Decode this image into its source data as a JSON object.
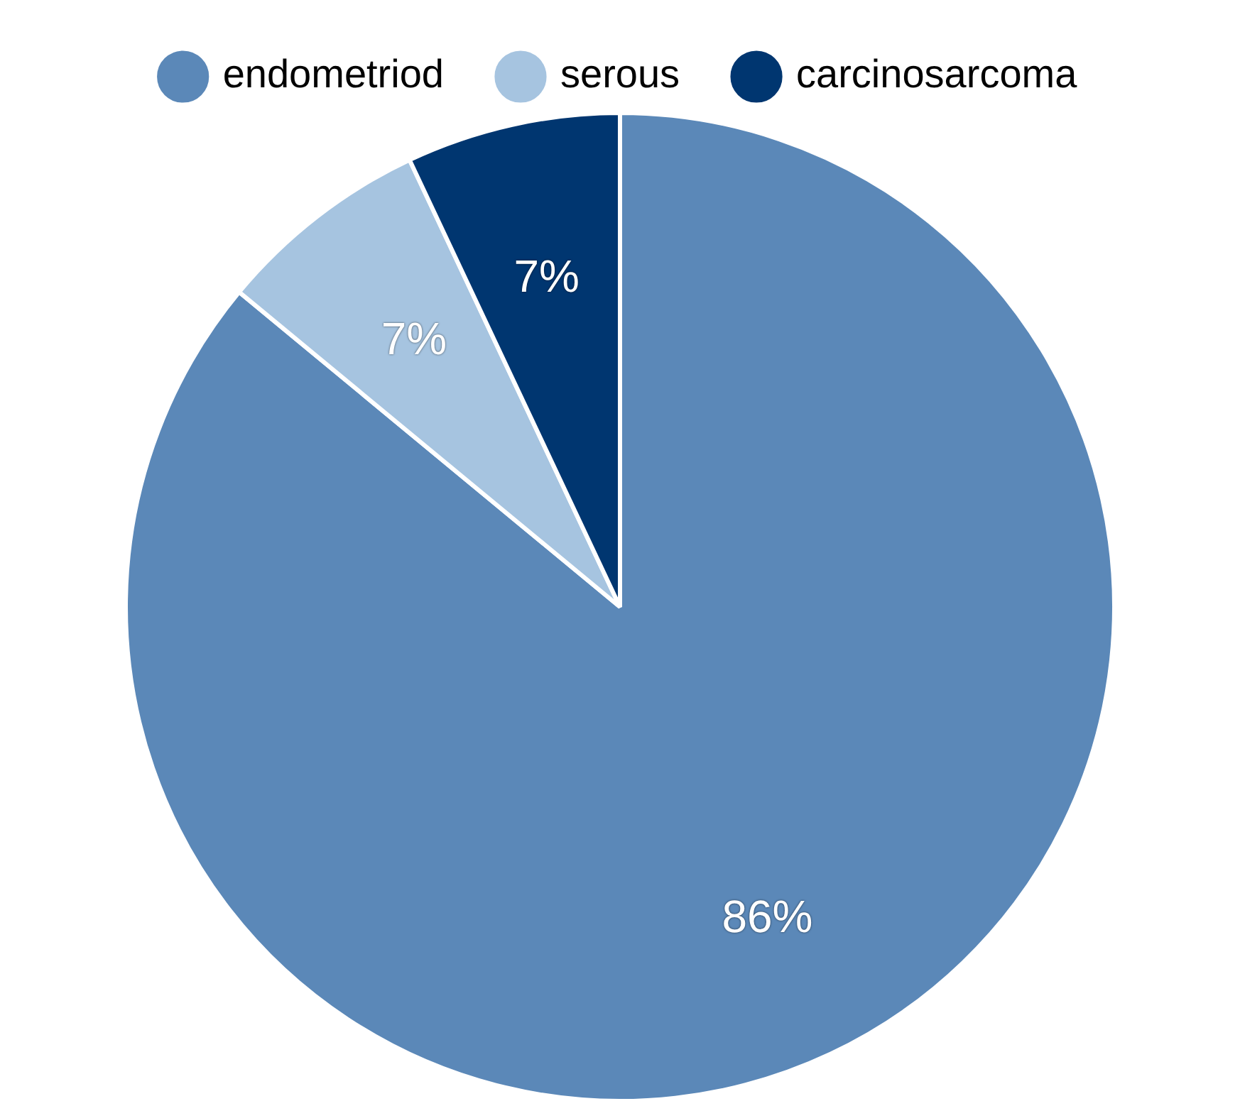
{
  "chart_data": {
    "type": "pie",
    "categories": [
      "endometriod",
      "serous",
      "carcinosarcoma"
    ],
    "values": [
      86,
      7,
      7
    ],
    "colors": [
      "#5b88b8",
      "#a6c4e0",
      "#003670"
    ],
    "value_labels": [
      "86%",
      "7%",
      "7%"
    ],
    "legend": "top"
  }
}
